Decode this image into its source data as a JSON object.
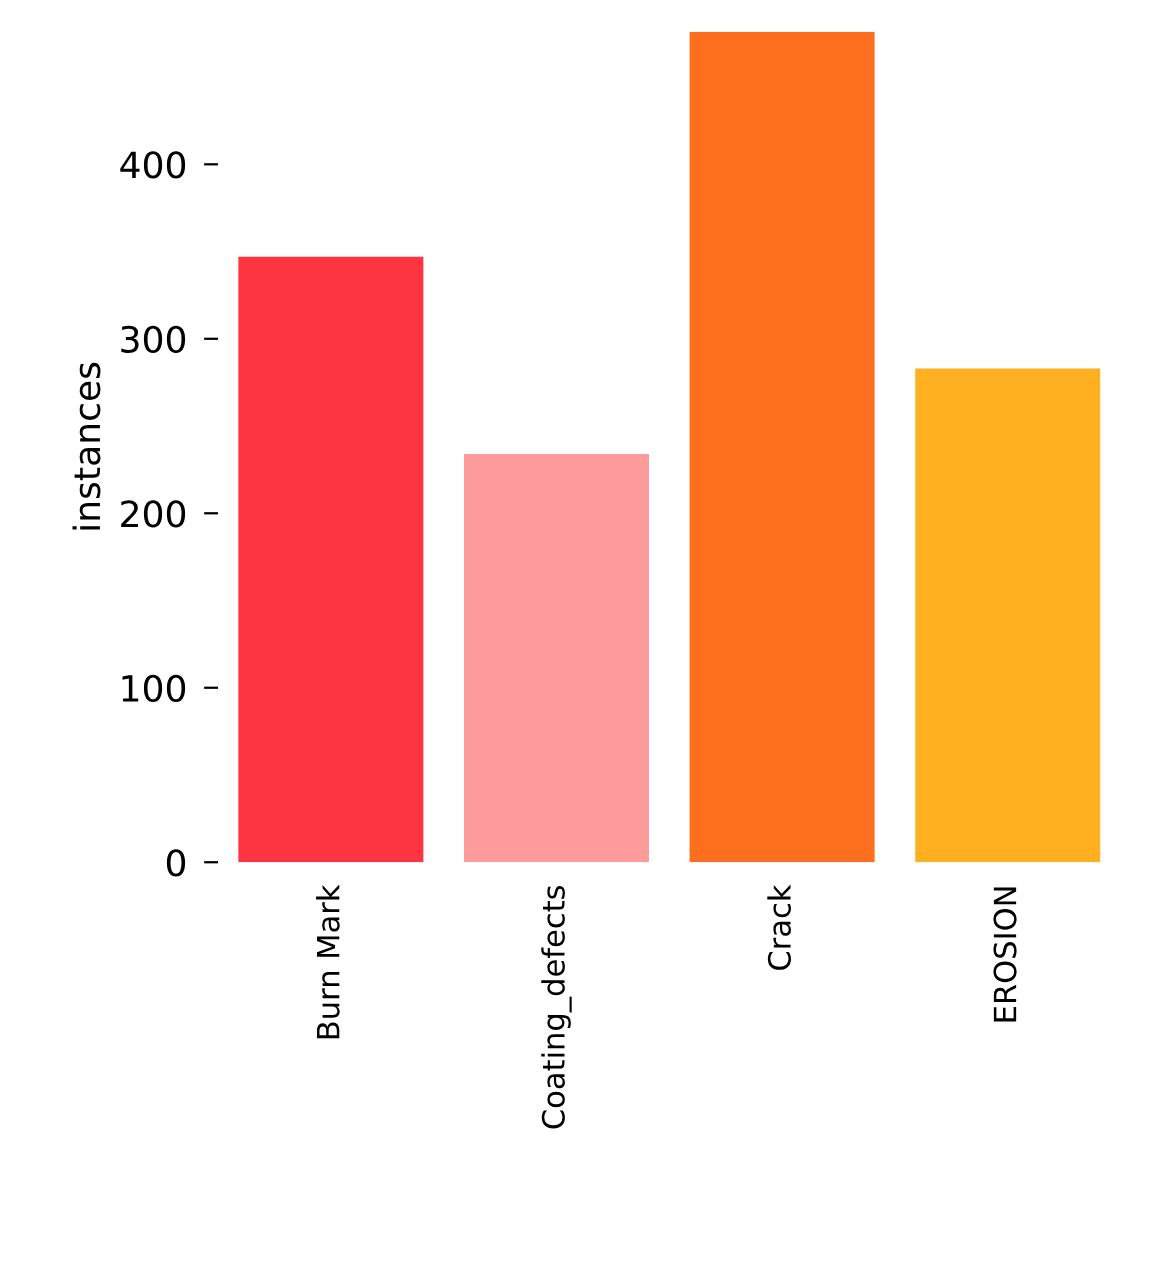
{
  "chart_data": {
    "type": "bar",
    "ylabel": "instances",
    "categories": [
      "Burn Mark",
      "Coating_defects",
      "Crack",
      "EROSION"
    ],
    "values": [
      347,
      234,
      476,
      283
    ],
    "colors": [
      "#fc3540",
      "#fd9c9b",
      "#fd6e1f",
      "#feb020"
    ],
    "ylim": [
      0,
      476
    ],
    "yticks": [
      0,
      100,
      200,
      300,
      400
    ],
    "grid": false
  }
}
